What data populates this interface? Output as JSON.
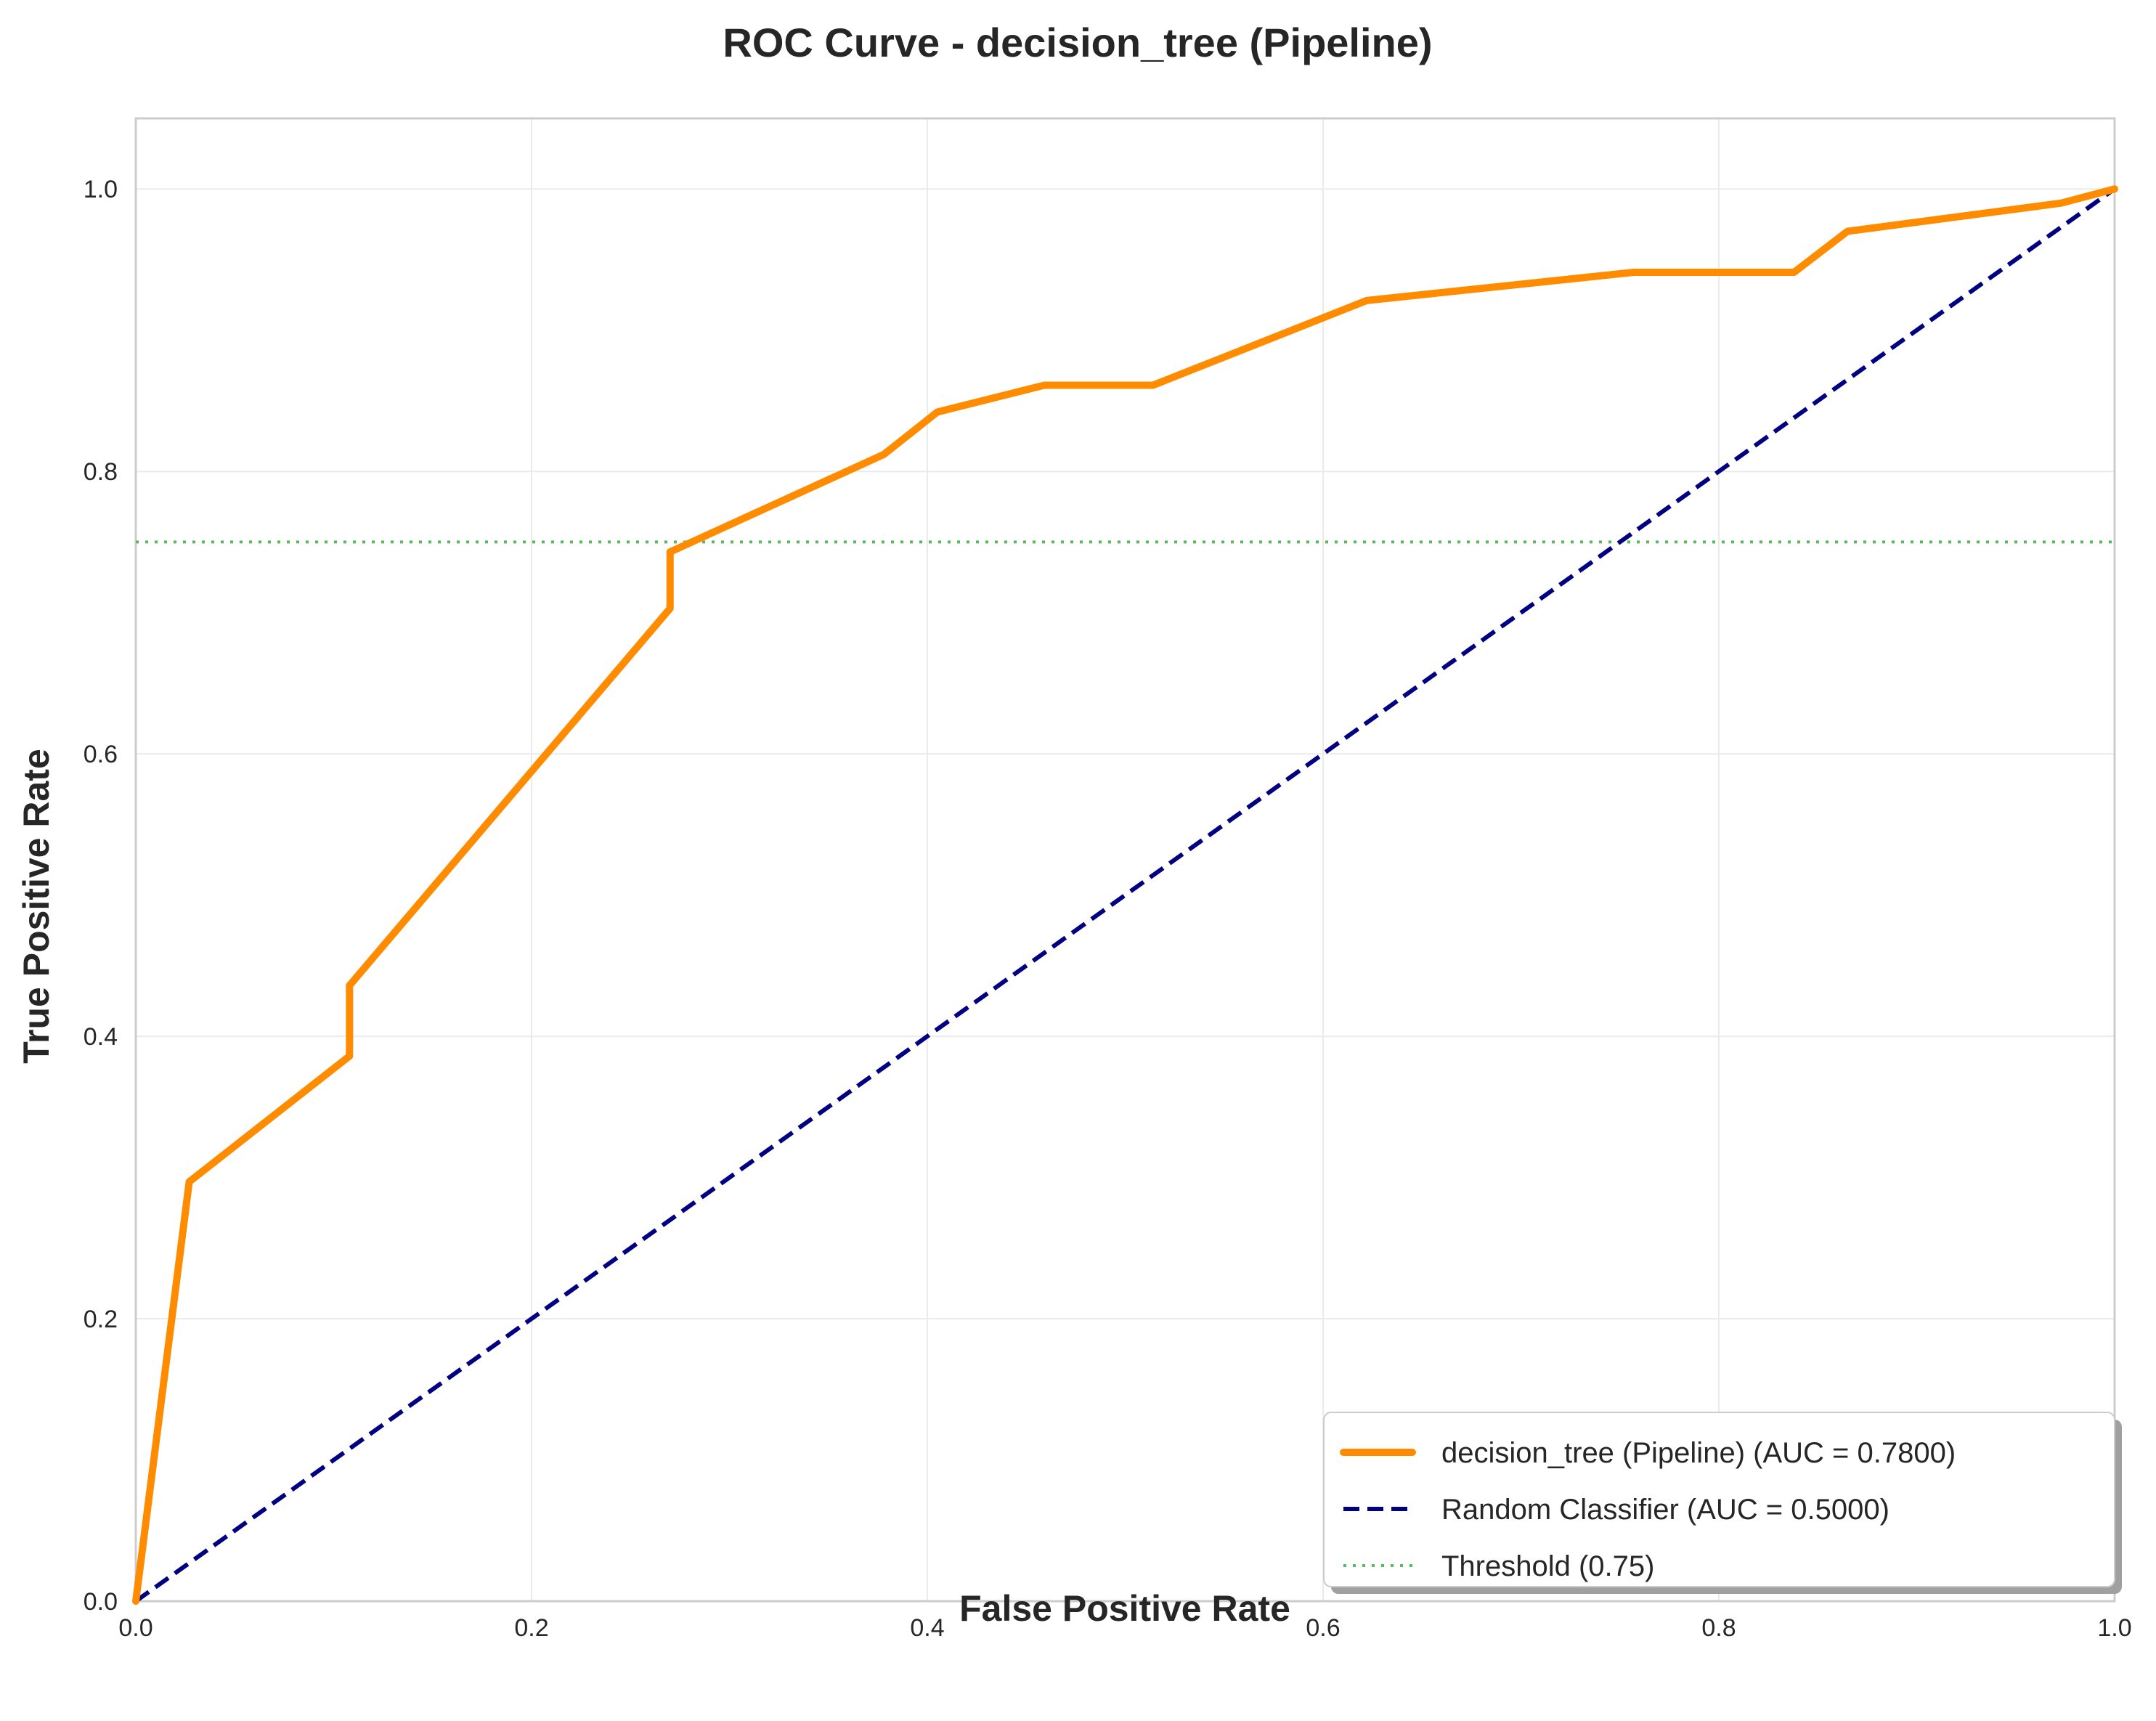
{
  "chart_data": {
    "type": "line",
    "title": "ROC Curve - decision_tree (Pipeline)",
    "xlabel": "False Positive Rate",
    "ylabel": "True Positive Rate",
    "xlim": [
      0.0,
      1.0
    ],
    "ylim": [
      0.0,
      1.05
    ],
    "xticks": [
      "0.0",
      "0.2",
      "0.4",
      "0.6",
      "0.8",
      "1.0"
    ],
    "yticks": [
      "0.0",
      "0.2",
      "0.4",
      "0.6",
      "0.8",
      "1.0"
    ],
    "grid": true,
    "legend_position": "lower-right",
    "series": [
      {
        "name": "decision_tree (Pipeline) (AUC = 0.7800)",
        "color": "#ff8c00",
        "style": "solid",
        "x": [
          0.0,
          0.027,
          0.108,
          0.108,
          0.27,
          0.27,
          0.378,
          0.405,
          0.459,
          0.514,
          0.622,
          0.757,
          0.838,
          0.865,
          0.973,
          1.0
        ],
        "y": [
          0.0,
          0.297,
          0.386,
          0.436,
          0.703,
          0.743,
          0.812,
          0.842,
          0.861,
          0.861,
          0.921,
          0.941,
          0.941,
          0.97,
          0.99,
          1.0
        ]
      },
      {
        "name": "Random Classifier (AUC = 0.5000)",
        "color": "#000080",
        "style": "dashed",
        "x": [
          0.0,
          1.0
        ],
        "y": [
          0.0,
          1.0
        ]
      },
      {
        "name": "Threshold (0.75)",
        "color": "#5cb85c",
        "style": "dotted",
        "x": [
          0.0,
          1.0
        ],
        "y": [
          0.75,
          0.75
        ]
      }
    ]
  }
}
